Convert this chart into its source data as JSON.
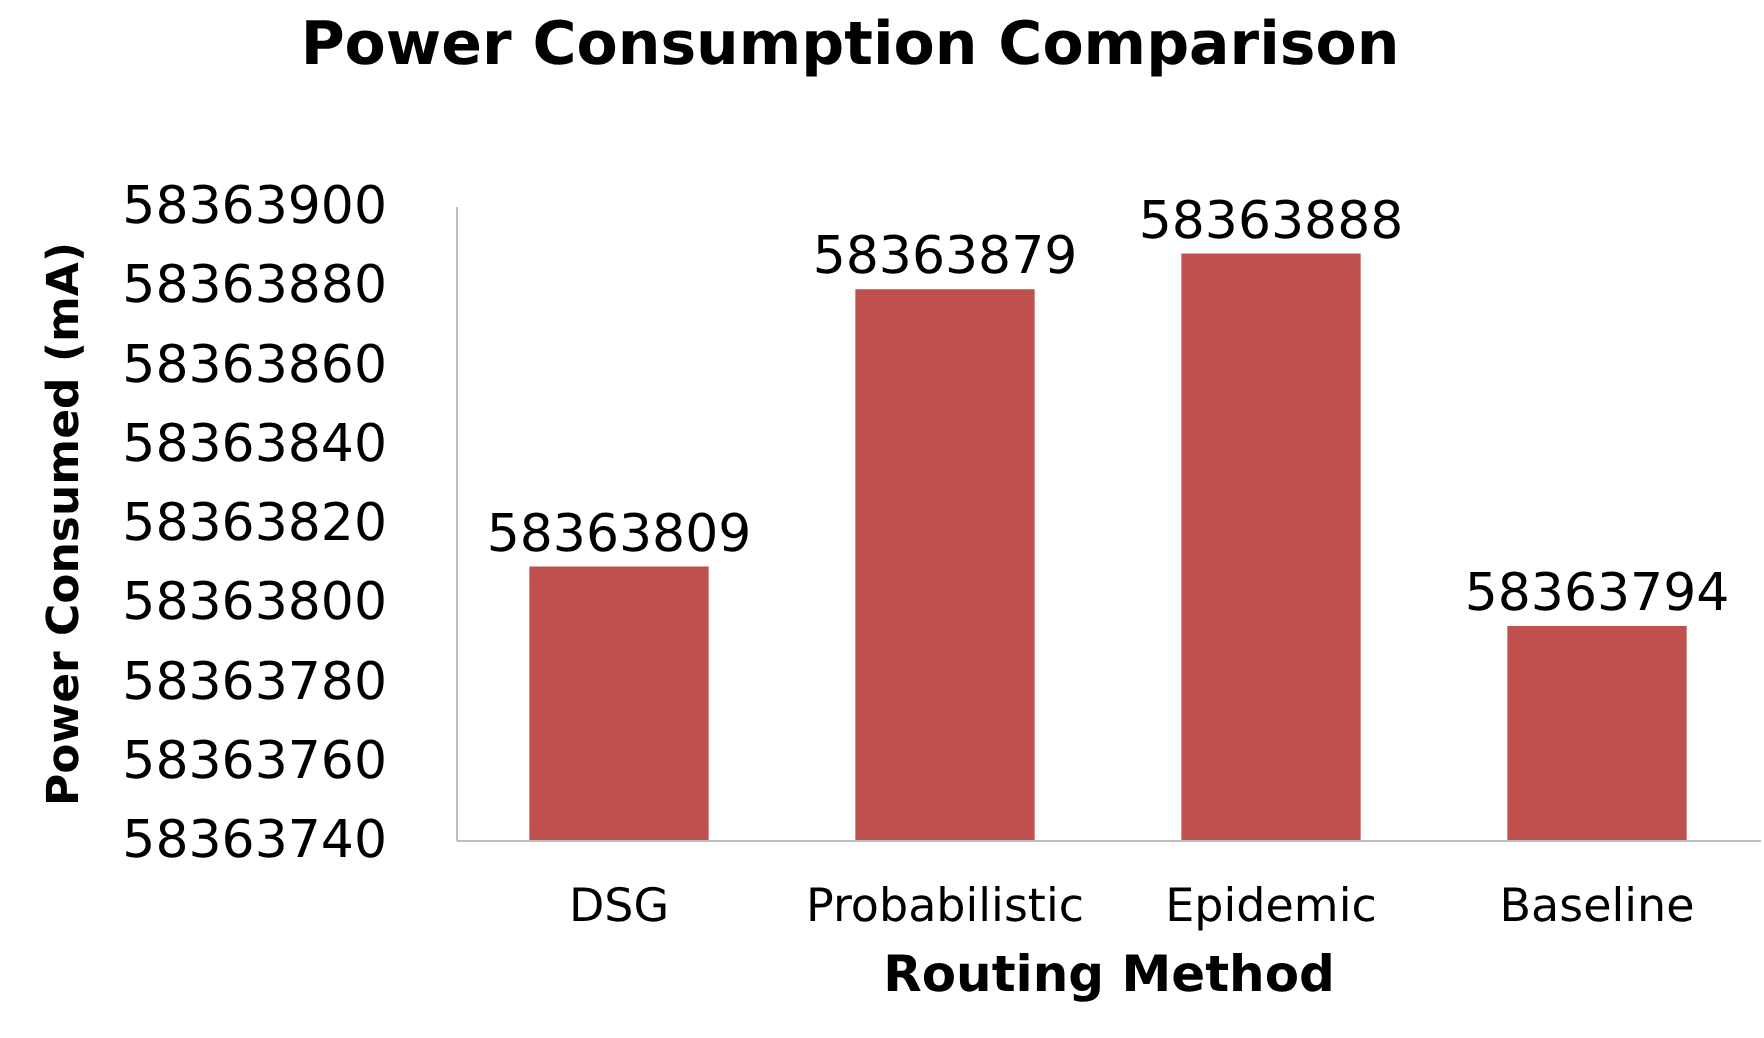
{
  "chart_data": {
    "type": "bar",
    "title": "Power Consumption Comparison",
    "xlabel": "Routing Method",
    "ylabel": "Power Consumed (mA)",
    "categories": [
      "DSG",
      "Probabilistic",
      "Epidemic",
      "Baseline"
    ],
    "values": [
      58363809,
      58363879,
      58363888,
      58363794
    ],
    "color": "#c0504d",
    "ylim": [
      58363740,
      58363900
    ],
    "yticks": [
      58363740,
      58363760,
      58363780,
      58363800,
      58363820,
      58363840,
      58363860,
      58363880,
      58363900
    ],
    "grid": false,
    "data_labels": true
  }
}
